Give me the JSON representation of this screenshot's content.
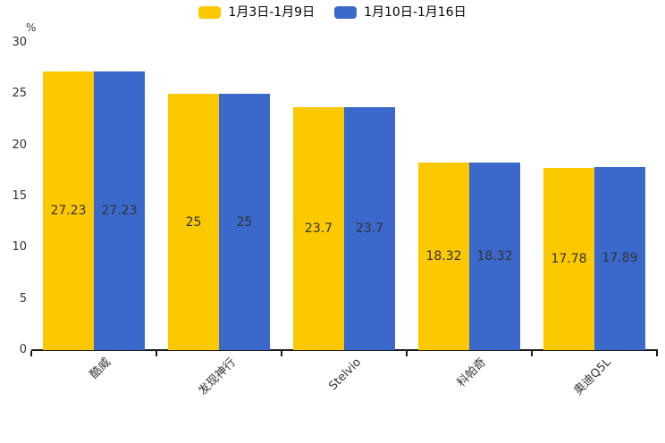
{
  "chart_data": {
    "type": "bar",
    "title": "",
    "categories": [
      "酷威",
      "发现神行",
      "Stelvio",
      "科帕奇",
      "奥迪Q5L"
    ],
    "series": [
      {
        "name": "1月3日-1月9日",
        "color": "#FCC800",
        "values": [
          27.23,
          25,
          23.7,
          18.32,
          17.78
        ]
      },
      {
        "name": "1月10日-1月16日",
        "color": "#3B68CB",
        "values": [
          27.23,
          25,
          23.7,
          18.32,
          17.89
        ]
      }
    ],
    "xlabel": "",
    "ylabel": "%",
    "ylim": [
      0,
      30
    ],
    "yticks": [
      0,
      5,
      10,
      15,
      20,
      25,
      30
    ],
    "grid": false,
    "legend_position": "top-center",
    "value_labels": "inside-center",
    "xtick_rotation_deg": 45
  },
  "colors": {
    "series1": "#FCC800",
    "series2": "#3B68CB",
    "axis": "#1a1a1a",
    "text": "#333333"
  }
}
